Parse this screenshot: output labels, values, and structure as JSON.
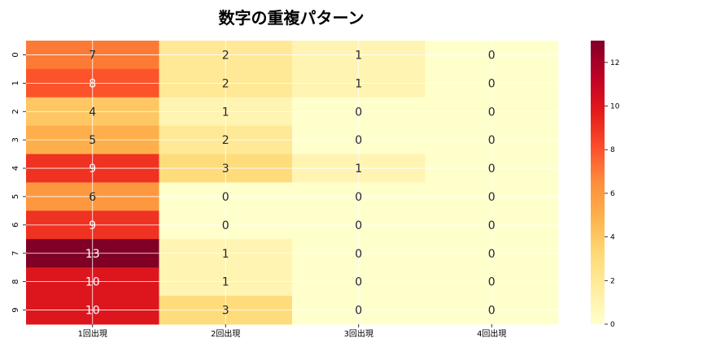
{
  "chart_data": {
    "type": "heatmap",
    "title": "数字の重複パターン",
    "columns": [
      "1回出現",
      "2回出現",
      "3回出現",
      "4回出現"
    ],
    "rows": [
      "0",
      "1",
      "2",
      "3",
      "4",
      "5",
      "6",
      "7",
      "8",
      "9"
    ],
    "values": [
      [
        7,
        2,
        1,
        0
      ],
      [
        8,
        2,
        1,
        0
      ],
      [
        4,
        1,
        0,
        0
      ],
      [
        5,
        2,
        0,
        0
      ],
      [
        9,
        3,
        1,
        0
      ],
      [
        6,
        0,
        0,
        0
      ],
      [
        9,
        0,
        0,
        0
      ],
      [
        13,
        1,
        0,
        0
      ],
      [
        10,
        1,
        0,
        0
      ],
      [
        10,
        3,
        0,
        0
      ]
    ],
    "vmin": 0,
    "vmax": 13,
    "colormap": "YlOrRd",
    "colorbar_ticks": [
      0,
      2,
      4,
      6,
      8,
      10,
      12
    ],
    "grid": true,
    "annotate": true
  }
}
